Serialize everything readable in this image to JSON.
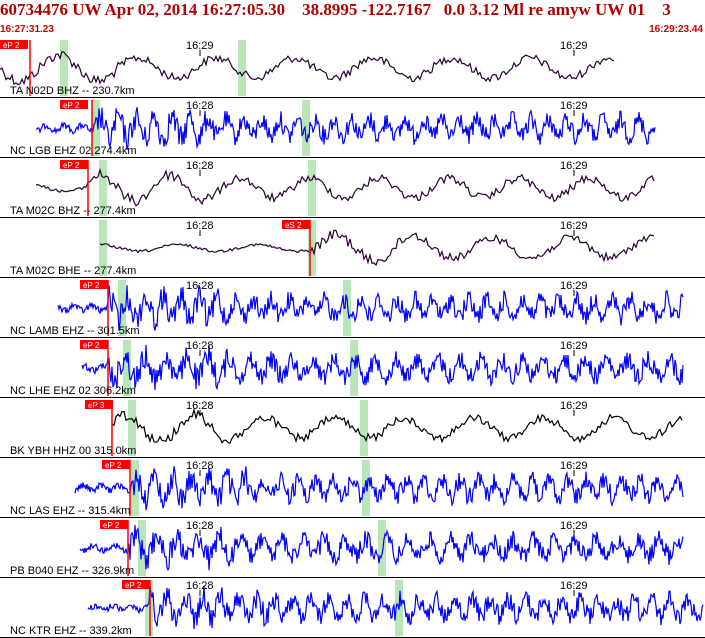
{
  "header": {
    "title": "60734476 UW Apr 02, 2014 16:27:05.30    38.8995 -122.7167   0.0 3.12 Ml re amyw UW 01    3",
    "time_start": "16:27:31.23",
    "time_end": "16:29:23.44"
  },
  "colors": {
    "header_text": "#b00000",
    "trace_blue": "#0000ff",
    "trace_dark": "#2a0033",
    "trace_black": "#000000",
    "pick_box": "#ff0000",
    "pick_line": "#ff0000",
    "phase_window": "#b8e6b8",
    "separator": "#000000"
  },
  "traces": [
    {
      "label": "TA N02D BHZ -- 230.7km",
      "pick": "eP 2",
      "ticks": [
        "16:29",
        "16:29"
      ],
      "color": "dark"
    },
    {
      "label": "NC LGB EHZ 02 274.4km",
      "pick": "eP 2",
      "ticks": [
        "16:28",
        "16:29"
      ],
      "color": "blue"
    },
    {
      "label": "TA M02C BHZ -- 277.4km",
      "pick": "eP 2",
      "ticks": [
        "16:28",
        "16:29"
      ],
      "color": "dark"
    },
    {
      "label": "TA M02C BHE -- 277.4km",
      "pick": "eS 2",
      "ticks": [
        "16:28",
        "16:29"
      ],
      "color": "dark"
    },
    {
      "label": "NC LAMB EHZ -- 301.5km",
      "pick": "eP 2",
      "ticks": [
        "16:28",
        "16:29"
      ],
      "color": "blue"
    },
    {
      "label": "NC LHE EHZ 02 306.2km",
      "pick": "eP 2",
      "ticks": [
        "16:28",
        "16:29"
      ],
      "color": "blue"
    },
    {
      "label": "BK YBH HHZ 00 315.0km",
      "pick": "eP 3",
      "ticks": [
        "16:28",
        "16:29"
      ],
      "color": "black"
    },
    {
      "label": "NC LAS EHZ -- 315.4km",
      "pick": "eP 2",
      "ticks": [
        "16:28",
        "16:29"
      ],
      "color": "blue"
    },
    {
      "label": "PB B040 EHZ -- 326.9km",
      "pick": "eP 2",
      "ticks": [
        "16:28",
        "16:29"
      ],
      "color": "blue"
    },
    {
      "label": "NC KTR EHZ -- 339.2km",
      "pick": "eP 2",
      "ticks": [
        "16:28",
        "16:29"
      ],
      "color": "blue"
    }
  ]
}
